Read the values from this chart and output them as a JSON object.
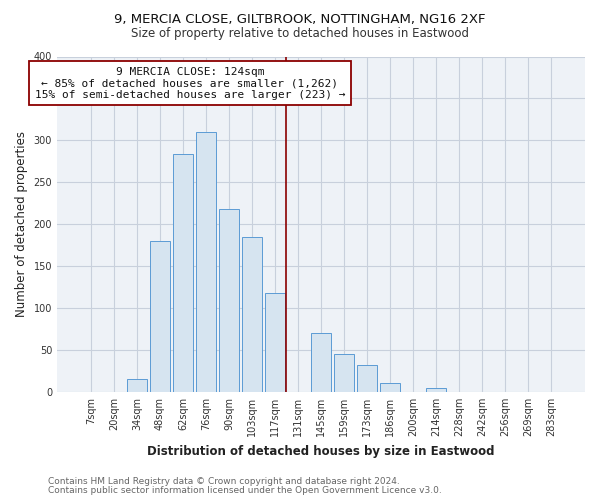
{
  "title_line1": "9, MERCIA CLOSE, GILTBROOK, NOTTINGHAM, NG16 2XF",
  "title_line2": "Size of property relative to detached houses in Eastwood",
  "xlabel": "Distribution of detached houses by size in Eastwood",
  "ylabel": "Number of detached properties",
  "bar_color": "#d6e4f0",
  "bar_edge_color": "#5b9bd5",
  "categories": [
    "7sqm",
    "20sqm",
    "34sqm",
    "48sqm",
    "62sqm",
    "76sqm",
    "90sqm",
    "103sqm",
    "117sqm",
    "131sqm",
    "145sqm",
    "159sqm",
    "173sqm",
    "186sqm",
    "200sqm",
    "214sqm",
    "228sqm",
    "242sqm",
    "256sqm",
    "269sqm",
    "283sqm"
  ],
  "values": [
    0,
    0,
    16,
    180,
    284,
    310,
    218,
    185,
    118,
    0,
    70,
    45,
    32,
    11,
    0,
    5,
    0,
    0,
    0,
    0,
    0
  ],
  "ylim": [
    0,
    400
  ],
  "yticks": [
    0,
    50,
    100,
    150,
    200,
    250,
    300,
    350,
    400
  ],
  "vline_x_index": 9,
  "vline_color": "#8b0000",
  "annotation_text": "9 MERCIA CLOSE: 124sqm\n← 85% of detached houses are smaller (1,262)\n15% of semi-detached houses are larger (223) →",
  "annotation_box_color": "#ffffff",
  "annotation_box_edge": "#8b0000",
  "footer_line1": "Contains HM Land Registry data © Crown copyright and database right 2024.",
  "footer_line2": "Contains public sector information licensed under the Open Government Licence v3.0.",
  "background_color": "#ffffff",
  "plot_background_color": "#eef2f7",
  "grid_color": "#c8d0dc",
  "title_fontsize": 9.5,
  "subtitle_fontsize": 8.5,
  "axis_label_fontsize": 8.5,
  "tick_fontsize": 7,
  "annotation_fontsize": 8,
  "footer_fontsize": 6.5
}
